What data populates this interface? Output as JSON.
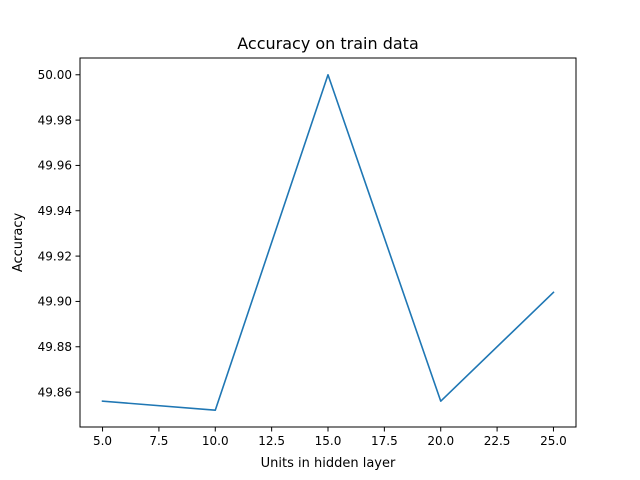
{
  "chart_data": {
    "type": "line",
    "title": "Accuracy on train data",
    "xlabel": "Units in hidden layer",
    "ylabel": "Accuracy",
    "x": [
      5,
      10,
      15,
      20,
      25
    ],
    "series": [
      {
        "values": [
          49.856,
          49.852,
          50.0,
          49.856,
          49.904
        ],
        "color": "#1f77b4"
      }
    ],
    "xlim": [
      4.0,
      26.0
    ],
    "ylim": [
      49.8446,
      50.0074
    ],
    "xticks": [
      5.0,
      7.5,
      10.0,
      12.5,
      15.0,
      17.5,
      20.0,
      22.5,
      25.0
    ],
    "xtick_labels": [
      "5.0",
      "7.5",
      "10.0",
      "12.5",
      "15.0",
      "17.5",
      "20.0",
      "22.5",
      "25.0"
    ],
    "yticks": [
      49.86,
      49.88,
      49.9,
      49.92,
      49.94,
      49.96,
      49.98,
      50.0
    ],
    "ytick_labels": [
      "49.86",
      "49.88",
      "49.90",
      "49.92",
      "49.94",
      "49.96",
      "49.98",
      "50.00"
    ],
    "grid": false,
    "legend": false
  }
}
